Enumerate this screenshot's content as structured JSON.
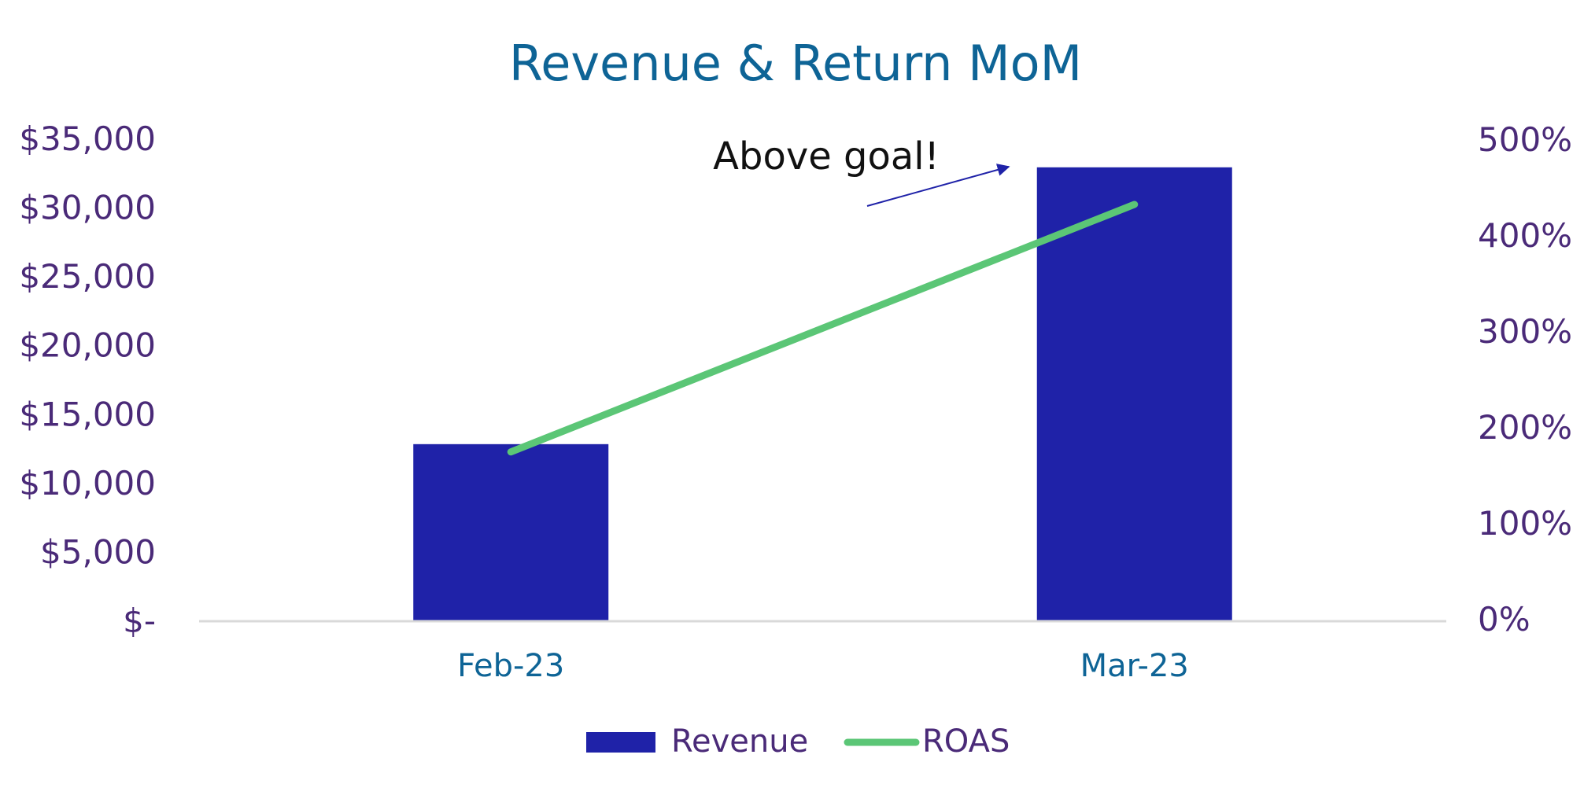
{
  "chart_data": {
    "type": "bar",
    "title": "Revenue & Return MoM",
    "categories": [
      "Feb-23",
      "Mar-23"
    ],
    "series": [
      {
        "name": "Revenue",
        "type": "bar",
        "axis": "left",
        "values": [
          12800,
          32900
        ],
        "color": "#1f22a8"
      },
      {
        "name": "ROAS",
        "type": "line",
        "axis": "right",
        "values": [
          1.74,
          4.32
        ],
        "color": "#5bc676"
      }
    ],
    "y_left": {
      "ylim": [
        0,
        35000
      ],
      "ticks": [
        0,
        5000,
        10000,
        15000,
        20000,
        25000,
        30000,
        35000
      ],
      "tick_labels": [
        "$-",
        "$5,000",
        "$10,000",
        "$15,000",
        "$20,000",
        "$25,000",
        "$30,000",
        "$35,000"
      ]
    },
    "y_right": {
      "ylim": [
        0,
        5
      ],
      "ticks": [
        0,
        1,
        2,
        3,
        4,
        5
      ],
      "tick_labels": [
        "0%",
        "100%",
        "200%",
        "300%",
        "400%",
        "500%"
      ]
    },
    "annotation": {
      "text": "Above goal!",
      "color": "#1f22a8"
    },
    "legend": {
      "placement": "bottom",
      "entries": [
        "Revenue",
        "ROAS"
      ]
    },
    "grid": false,
    "colors": {
      "title": "#0e6496",
      "axis_tick_text": "#4a2a78",
      "x_tick_text": "#0e6496",
      "baseline": "#d9d9d9"
    }
  }
}
